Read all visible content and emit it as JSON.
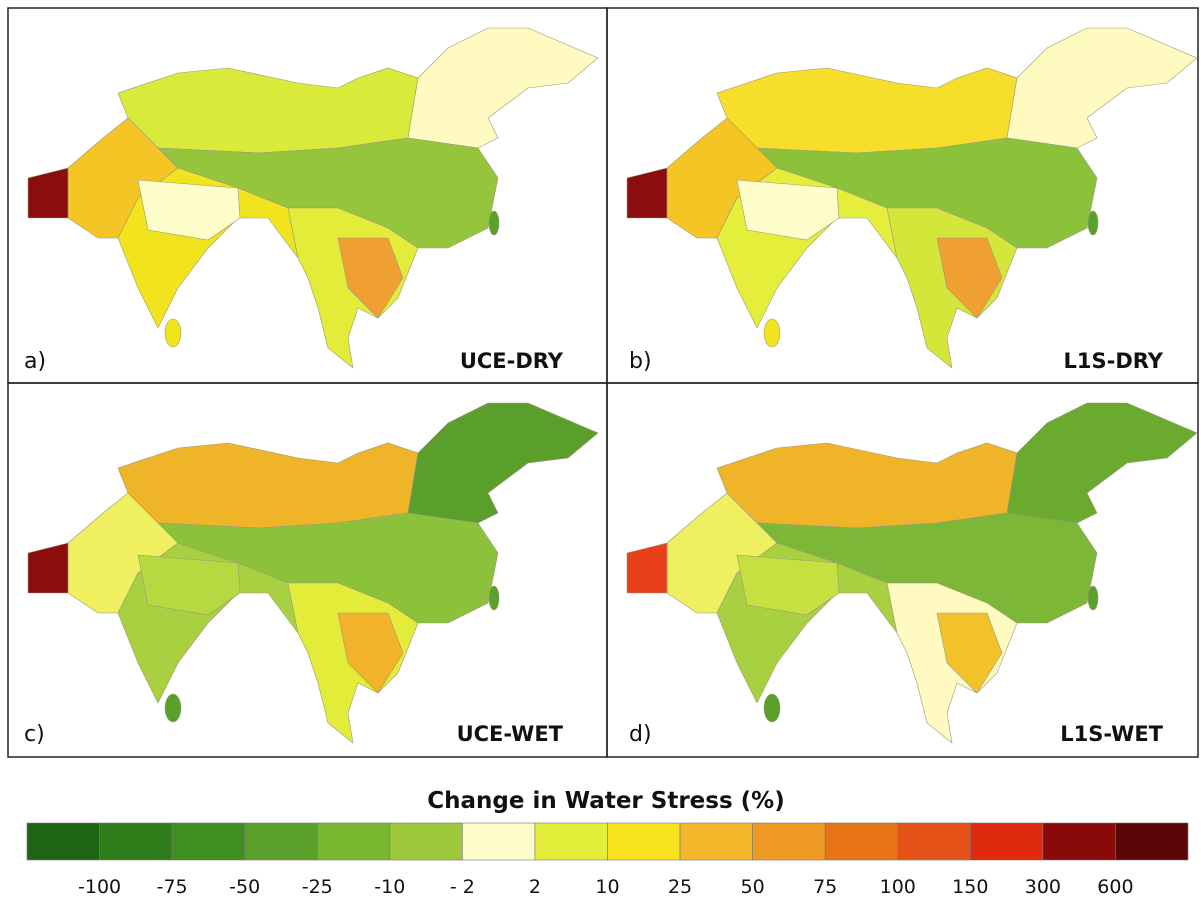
{
  "panels": [
    {
      "label": "a)",
      "title": "UCE-DRY"
    },
    {
      "label": "b)",
      "title": "L1S-DRY"
    },
    {
      "label": "c)",
      "title": "UCE-WET"
    },
    {
      "label": "d)",
      "title": "L1S-WET"
    }
  ],
  "legend": {
    "title": "Change in Water Stress (%)",
    "colors": [
      "#1e6414",
      "#2e7d1a",
      "#3f8f20",
      "#5aa02a",
      "#7ab832",
      "#9cc83a",
      "#fefcc8",
      "#e2ee3a",
      "#f8e21e",
      "#f2b82a",
      "#ee9a24",
      "#e87418",
      "#e45218",
      "#e02a10",
      "#8a0a0a",
      "#5a0606"
    ],
    "tick_labels": [
      "-100",
      "-75",
      "-50",
      "-25",
      "-10",
      "- 2",
      "2",
      "10",
      "25",
      "50",
      "75",
      "100",
      "150",
      "300",
      "600"
    ]
  }
}
